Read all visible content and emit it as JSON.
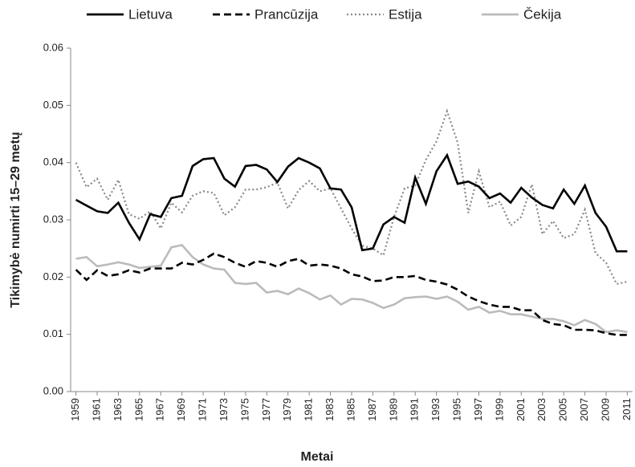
{
  "chart_data": {
    "type": "line",
    "xlabel": "Metai",
    "ylabel": "Tikimybė numirti 15–29 metų",
    "x": [
      1959,
      1960,
      1961,
      1962,
      1963,
      1964,
      1965,
      1966,
      1967,
      1968,
      1969,
      1970,
      1971,
      1972,
      1973,
      1974,
      1975,
      1976,
      1977,
      1978,
      1979,
      1980,
      1981,
      1982,
      1983,
      1984,
      1985,
      1986,
      1987,
      1988,
      1989,
      1990,
      1991,
      1992,
      1993,
      1994,
      1995,
      1996,
      1997,
      1998,
      1999,
      2000,
      2001,
      2002,
      2003,
      2004,
      2005,
      2006,
      2007,
      2008,
      2009,
      2010,
      2011
    ],
    "xlim": [
      1958.5,
      2011.5
    ],
    "xticks": [
      1959,
      1961,
      1963,
      1965,
      1967,
      1969,
      1971,
      1973,
      1975,
      1977,
      1979,
      1981,
      1983,
      1985,
      1987,
      1989,
      1991,
      1993,
      1995,
      1997,
      1999,
      2001,
      2003,
      2005,
      2007,
      2009,
      2011
    ],
    "ylim": [
      0,
      0.06
    ],
    "yticks": [
      {
        "value": 0,
        "label": "0.00"
      },
      0.01,
      0.02,
      0.03,
      0.04,
      0.05,
      0.06
    ],
    "grid": false,
    "legend": "top",
    "series": [
      {
        "name": "Lietuva",
        "color": "#000000",
        "style": "solid",
        "values": [
          0.0335,
          0.0325,
          0.0315,
          0.0312,
          0.033,
          0.0295,
          0.0266,
          0.031,
          0.0305,
          0.0338,
          0.0342,
          0.0394,
          0.0406,
          0.0408,
          0.0372,
          0.0358,
          0.0394,
          0.0396,
          0.0388,
          0.0366,
          0.0393,
          0.0408,
          0.04,
          0.039,
          0.0355,
          0.0353,
          0.0322,
          0.0247,
          0.025,
          0.0292,
          0.0305,
          0.0295,
          0.0374,
          0.0328,
          0.0385,
          0.0413,
          0.0363,
          0.0367,
          0.0358,
          0.0338,
          0.0346,
          0.033,
          0.0356,
          0.0339,
          0.0326,
          0.032,
          0.0353,
          0.0328,
          0.036,
          0.0312,
          0.0288,
          0.0245,
          0.0245
        ]
      },
      {
        "name": "Prancūzija",
        "color": "#000000",
        "style": "dashed",
        "values": [
          0.0213,
          0.0195,
          0.0212,
          0.0202,
          0.0205,
          0.0212,
          0.0208,
          0.0215,
          0.0215,
          0.0215,
          0.0225,
          0.0222,
          0.023,
          0.0241,
          0.0235,
          0.0225,
          0.0218,
          0.0228,
          0.0225,
          0.0218,
          0.0228,
          0.0232,
          0.022,
          0.0222,
          0.022,
          0.0215,
          0.0205,
          0.0201,
          0.0193,
          0.0194,
          0.02,
          0.02,
          0.0202,
          0.0195,
          0.0192,
          0.0187,
          0.0178,
          0.0166,
          0.0158,
          0.0152,
          0.0148,
          0.0148,
          0.0142,
          0.0142,
          0.0125,
          0.0118,
          0.0116,
          0.0108,
          0.0108,
          0.0107,
          0.0102,
          0.0099,
          0.0099
        ]
      },
      {
        "name": "Estija",
        "color": "#888888",
        "style": "dotted",
        "values": [
          0.04,
          0.0357,
          0.0372,
          0.0335,
          0.037,
          0.031,
          0.0302,
          0.0315,
          0.0285,
          0.033,
          0.0313,
          0.0342,
          0.035,
          0.0347,
          0.0308,
          0.0322,
          0.0353,
          0.0353,
          0.0357,
          0.0365,
          0.032,
          0.0352,
          0.0368,
          0.035,
          0.0355,
          0.032,
          0.0285,
          0.0255,
          0.025,
          0.0238,
          0.0305,
          0.0355,
          0.036,
          0.0405,
          0.0437,
          0.049,
          0.0435,
          0.0312,
          0.0385,
          0.0322,
          0.0332,
          0.029,
          0.0305,
          0.0362,
          0.0275,
          0.0298,
          0.0268,
          0.0275,
          0.0318,
          0.0242,
          0.0225,
          0.0188,
          0.0192
        ]
      },
      {
        "name": "Čekija",
        "color": "#bbbbbb",
        "style": "solid",
        "values": [
          0.0232,
          0.0235,
          0.0219,
          0.0222,
          0.0226,
          0.0222,
          0.0216,
          0.0218,
          0.022,
          0.0252,
          0.0256,
          0.0235,
          0.0222,
          0.0215,
          0.0213,
          0.019,
          0.0188,
          0.019,
          0.0173,
          0.0176,
          0.017,
          0.018,
          0.0172,
          0.0161,
          0.0168,
          0.0152,
          0.0162,
          0.0161,
          0.0155,
          0.0146,
          0.0152,
          0.0163,
          0.0165,
          0.0166,
          0.0162,
          0.0166,
          0.0157,
          0.0143,
          0.0148,
          0.0138,
          0.0141,
          0.0135,
          0.0135,
          0.0131,
          0.0127,
          0.0127,
          0.0123,
          0.0116,
          0.0125,
          0.0118,
          0.0104,
          0.0107,
          0.0104
        ]
      }
    ]
  }
}
